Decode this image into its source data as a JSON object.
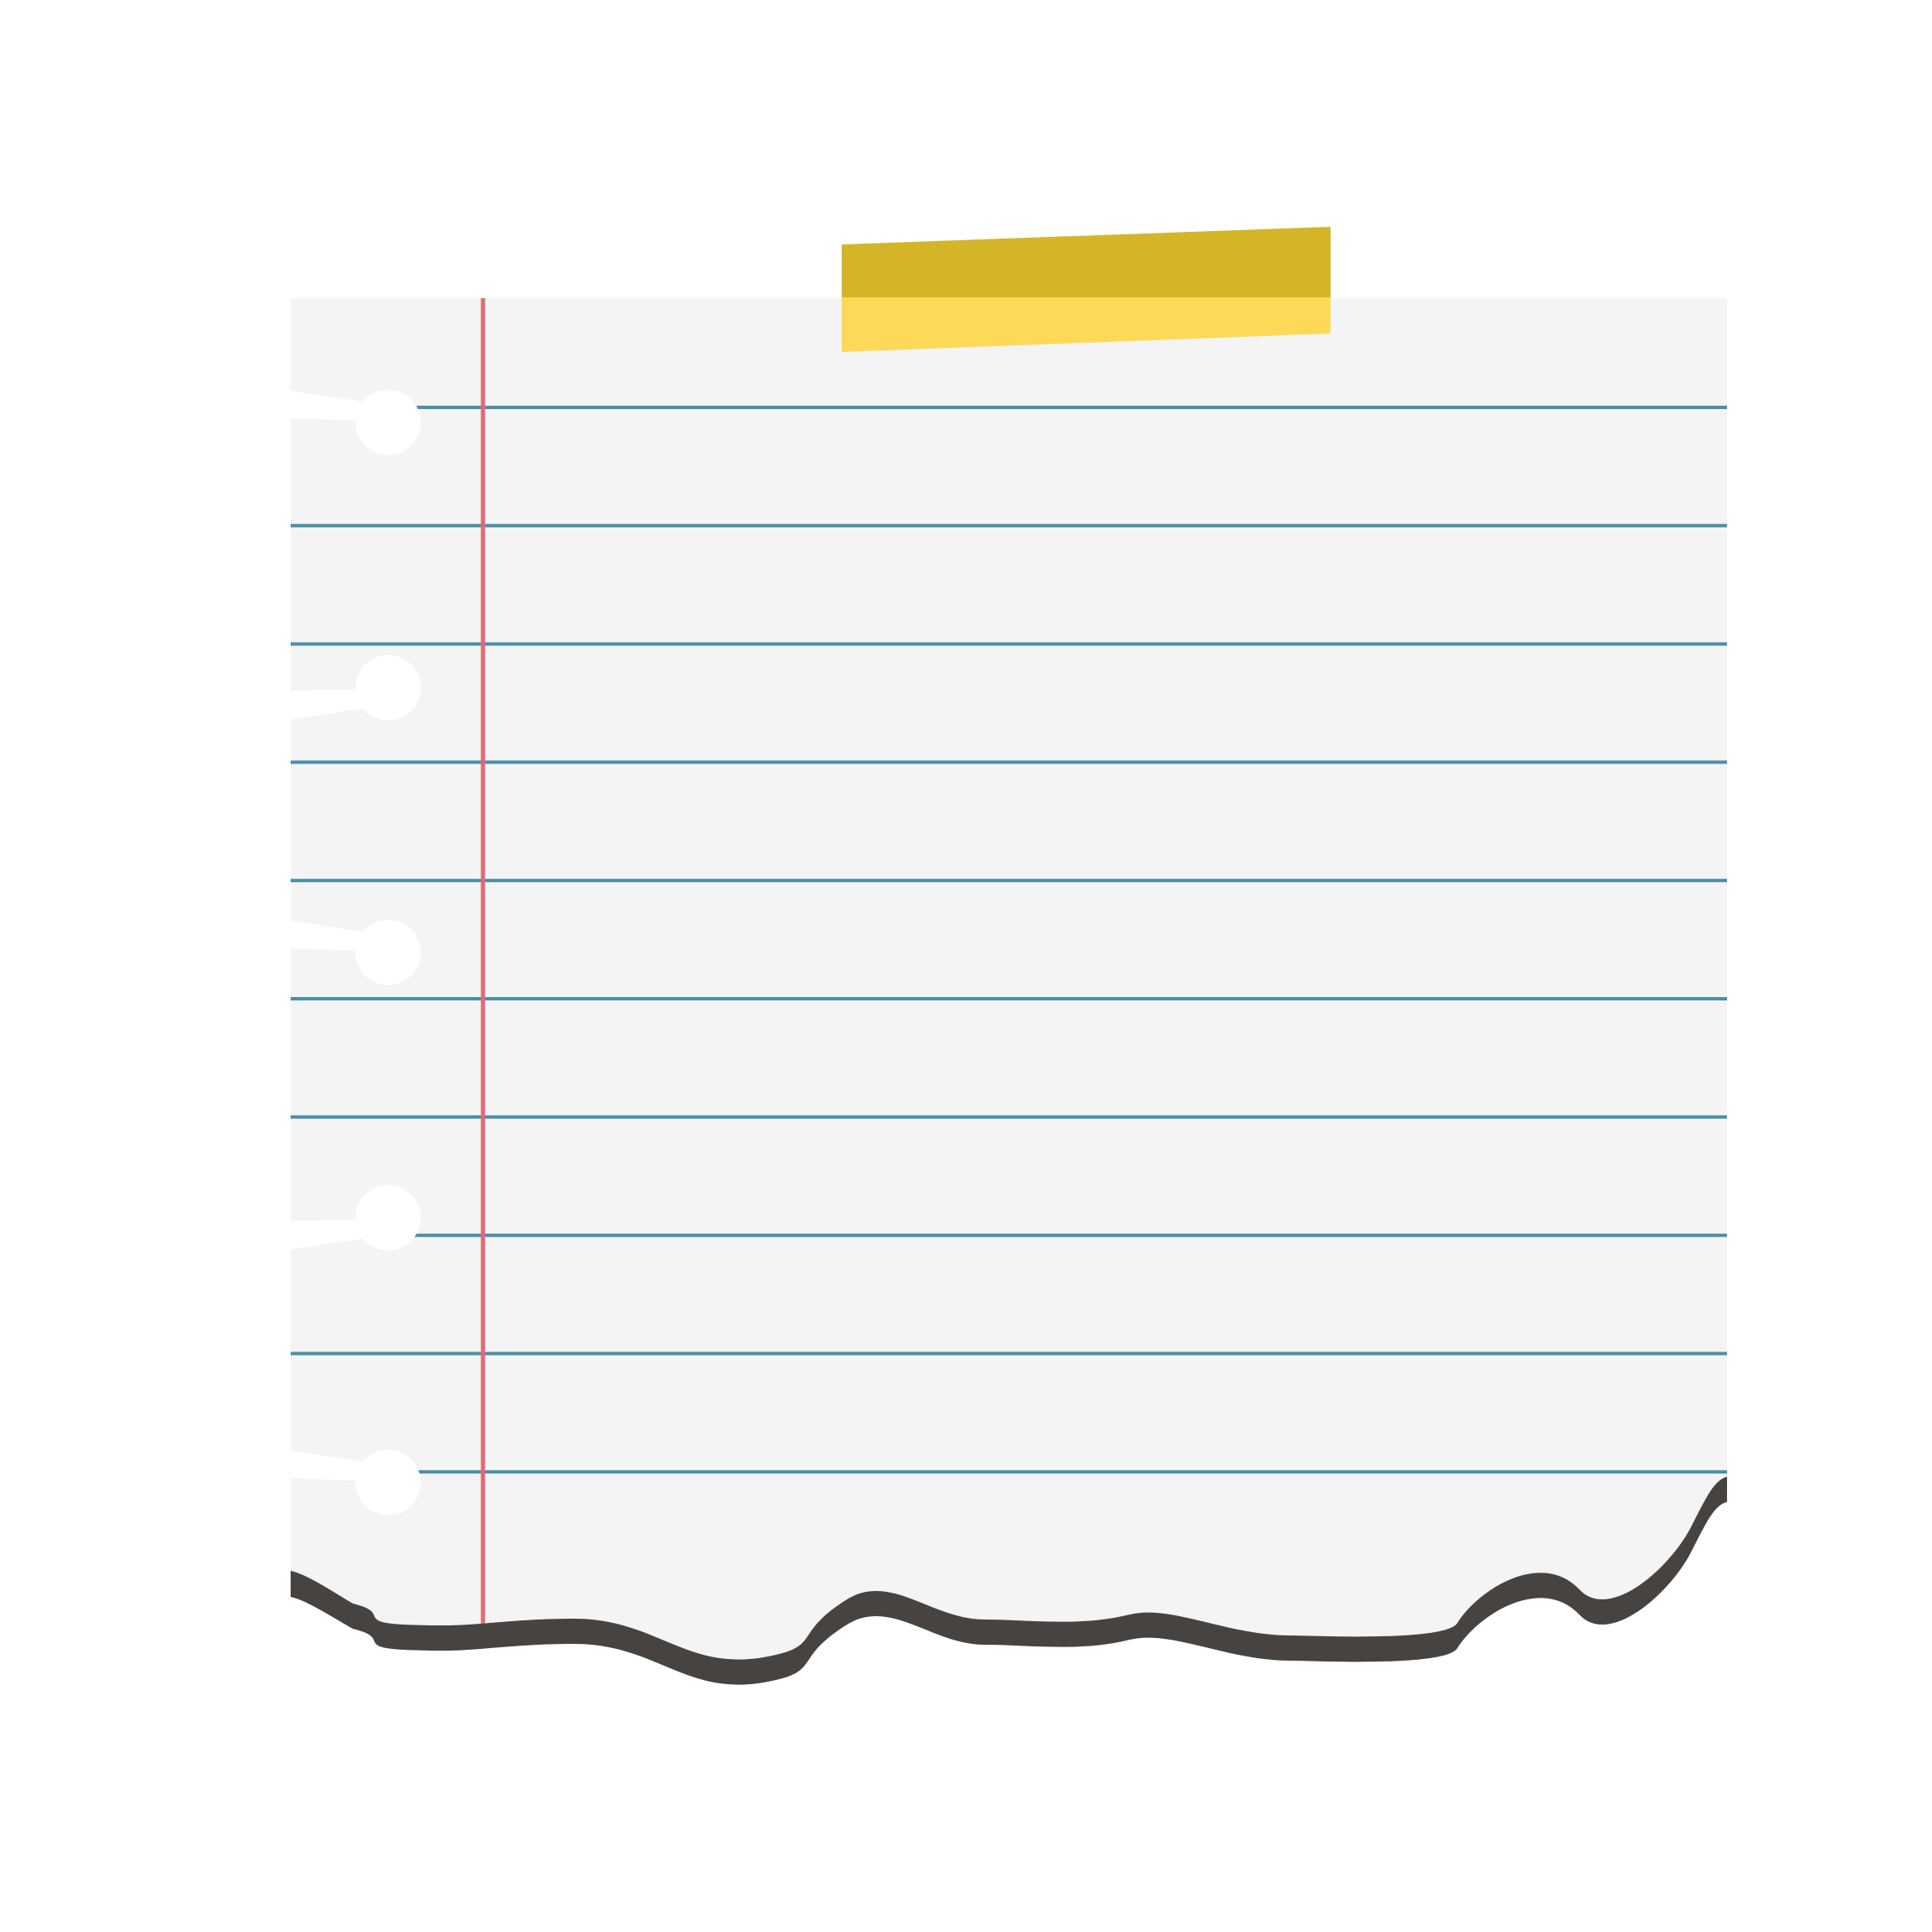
{
  "sheet": {
    "kind": "torn ruled notebook paper with adhesive tape",
    "ruled_line_count": 10,
    "binder_hole_count": 5,
    "has_margin_line": true,
    "has_tape": true,
    "colors": {
      "background": "#ffffff",
      "paper": "#f4f4f4",
      "ruled_line": "#4a8fa8",
      "margin_line": "#e06a72",
      "tape_top": "#d4b528",
      "tape_bottom": "#fcd957",
      "torn_edge_shadow": "#474341",
      "hole": "#ffffff"
    }
  }
}
